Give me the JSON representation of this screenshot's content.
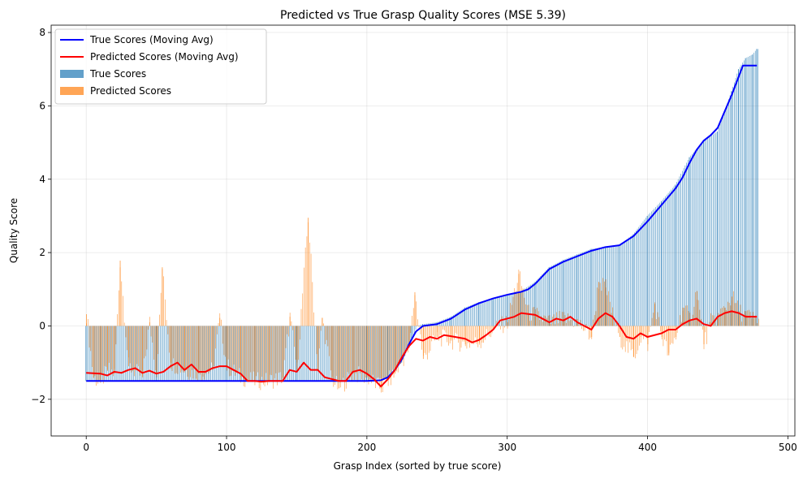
{
  "chart_data": {
    "type": "bar",
    "title": "Predicted vs True Grasp Quality Scores (MSE 5.39)",
    "xlabel": "Grasp Index (sorted by true score)",
    "ylabel": "Quality Score",
    "xlim": [
      -25,
      505
    ],
    "ylim": [
      -3,
      8.2
    ],
    "x_ticks": [
      0,
      100,
      200,
      300,
      400,
      500
    ],
    "y_ticks": [
      -2,
      0,
      2,
      4,
      6,
      8
    ],
    "grid": true,
    "legend_position": "top-left",
    "n_points": 480,
    "series": [
      {
        "name": "True Scores (Moving Avg)",
        "kind": "line",
        "color": "#0000ff",
        "points": [
          [
            0,
            -1.5
          ],
          [
            100,
            -1.5
          ],
          [
            200,
            -1.5
          ],
          [
            210,
            -1.48
          ],
          [
            215,
            -1.4
          ],
          [
            220,
            -1.2
          ],
          [
            225,
            -0.9
          ],
          [
            230,
            -0.5
          ],
          [
            235,
            -0.15
          ],
          [
            240,
            0.0
          ],
          [
            250,
            0.05
          ],
          [
            260,
            0.2
          ],
          [
            270,
            0.45
          ],
          [
            280,
            0.62
          ],
          [
            290,
            0.75
          ],
          [
            300,
            0.85
          ],
          [
            310,
            0.93
          ],
          [
            315,
            1.0
          ],
          [
            320,
            1.15
          ],
          [
            325,
            1.35
          ],
          [
            330,
            1.55
          ],
          [
            340,
            1.75
          ],
          [
            350,
            1.9
          ],
          [
            360,
            2.05
          ],
          [
            370,
            2.15
          ],
          [
            380,
            2.2
          ],
          [
            390,
            2.45
          ],
          [
            400,
            2.85
          ],
          [
            410,
            3.3
          ],
          [
            420,
            3.75
          ],
          [
            425,
            4.05
          ],
          [
            430,
            4.45
          ],
          [
            435,
            4.8
          ],
          [
            440,
            5.05
          ],
          [
            445,
            5.2
          ],
          [
            450,
            5.4
          ],
          [
            455,
            5.85
          ],
          [
            460,
            6.3
          ],
          [
            465,
            6.8
          ],
          [
            468,
            7.1
          ],
          [
            478,
            7.1
          ]
        ]
      },
      {
        "name": "Predicted Scores (Moving Avg)",
        "kind": "line",
        "color": "#ff0000",
        "points": [
          [
            0,
            -1.28
          ],
          [
            10,
            -1.3
          ],
          [
            15,
            -1.35
          ],
          [
            20,
            -1.25
          ],
          [
            25,
            -1.28
          ],
          [
            30,
            -1.2
          ],
          [
            35,
            -1.15
          ],
          [
            40,
            -1.28
          ],
          [
            45,
            -1.22
          ],
          [
            50,
            -1.3
          ],
          [
            55,
            -1.25
          ],
          [
            60,
            -1.1
          ],
          [
            65,
            -1.0
          ],
          [
            70,
            -1.2
          ],
          [
            75,
            -1.05
          ],
          [
            80,
            -1.25
          ],
          [
            85,
            -1.25
          ],
          [
            90,
            -1.15
          ],
          [
            95,
            -1.1
          ],
          [
            100,
            -1.1
          ],
          [
            105,
            -1.2
          ],
          [
            110,
            -1.3
          ],
          [
            115,
            -1.5
          ],
          [
            120,
            -1.5
          ],
          [
            125,
            -1.52
          ],
          [
            130,
            -1.5
          ],
          [
            140,
            -1.5
          ],
          [
            145,
            -1.2
          ],
          [
            150,
            -1.25
          ],
          [
            155,
            -1.0
          ],
          [
            160,
            -1.2
          ],
          [
            165,
            -1.2
          ],
          [
            170,
            -1.4
          ],
          [
            175,
            -1.45
          ],
          [
            180,
            -1.5
          ],
          [
            185,
            -1.5
          ],
          [
            190,
            -1.25
          ],
          [
            195,
            -1.2
          ],
          [
            200,
            -1.3
          ],
          [
            205,
            -1.45
          ],
          [
            210,
            -1.65
          ],
          [
            215,
            -1.45
          ],
          [
            220,
            -1.2
          ],
          [
            225,
            -0.85
          ],
          [
            230,
            -0.55
          ],
          [
            235,
            -0.35
          ],
          [
            240,
            -0.4
          ],
          [
            245,
            -0.3
          ],
          [
            250,
            -0.35
          ],
          [
            255,
            -0.25
          ],
          [
            260,
            -0.28
          ],
          [
            270,
            -0.35
          ],
          [
            275,
            -0.45
          ],
          [
            280,
            -0.38
          ],
          [
            285,
            -0.25
          ],
          [
            290,
            -0.1
          ],
          [
            295,
            0.15
          ],
          [
            300,
            0.2
          ],
          [
            305,
            0.25
          ],
          [
            310,
            0.35
          ],
          [
            320,
            0.3
          ],
          [
            325,
            0.2
          ],
          [
            330,
            0.1
          ],
          [
            335,
            0.2
          ],
          [
            340,
            0.15
          ],
          [
            345,
            0.25
          ],
          [
            350,
            0.1
          ],
          [
            355,
            0.0
          ],
          [
            360,
            -0.1
          ],
          [
            365,
            0.2
          ],
          [
            370,
            0.35
          ],
          [
            375,
            0.25
          ],
          [
            380,
            0.0
          ],
          [
            385,
            -0.3
          ],
          [
            390,
            -0.35
          ],
          [
            395,
            -0.2
          ],
          [
            400,
            -0.3
          ],
          [
            410,
            -0.2
          ],
          [
            415,
            -0.1
          ],
          [
            420,
            -0.1
          ],
          [
            425,
            0.05
          ],
          [
            430,
            0.15
          ],
          [
            435,
            0.2
          ],
          [
            440,
            0.05
          ],
          [
            445,
            0.0
          ],
          [
            450,
            0.25
          ],
          [
            455,
            0.35
          ],
          [
            460,
            0.4
          ],
          [
            465,
            0.35
          ],
          [
            470,
            0.25
          ],
          [
            478,
            0.25
          ]
        ]
      },
      {
        "name": "True Scores",
        "kind": "bar",
        "color": "#1f77b4",
        "points": [
          [
            0,
            -1.5
          ],
          [
            50,
            -1.5
          ],
          [
            100,
            -1.5
          ],
          [
            150,
            -1.5
          ],
          [
            200,
            -1.5
          ],
          [
            215,
            -1.4
          ],
          [
            225,
            -1.0
          ],
          [
            232,
            -0.4
          ],
          [
            236,
            0.0
          ],
          [
            240,
            0.05
          ],
          [
            250,
            0.1
          ],
          [
            260,
            0.25
          ],
          [
            270,
            0.5
          ],
          [
            280,
            0.65
          ],
          [
            290,
            0.75
          ],
          [
            300,
            0.85
          ],
          [
            310,
            0.95
          ],
          [
            320,
            1.2
          ],
          [
            330,
            1.6
          ],
          [
            340,
            1.8
          ],
          [
            350,
            1.95
          ],
          [
            360,
            2.1
          ],
          [
            370,
            2.15
          ],
          [
            380,
            2.2
          ],
          [
            390,
            2.5
          ],
          [
            400,
            3.0
          ],
          [
            410,
            3.4
          ],
          [
            420,
            3.85
          ],
          [
            430,
            4.6
          ],
          [
            440,
            5.05
          ],
          [
            450,
            5.3
          ],
          [
            460,
            6.4
          ],
          [
            465,
            7.0
          ],
          [
            470,
            7.3
          ],
          [
            475,
            7.4
          ],
          [
            478,
            7.55
          ]
        ]
      },
      {
        "name": "Predicted Scores",
        "kind": "bar",
        "color": "#ff7f0e",
        "points": [
          [
            0,
            0.32
          ],
          [
            5,
            -1.4
          ],
          [
            10,
            -1.55
          ],
          [
            15,
            -1.2
          ],
          [
            20,
            -1.3
          ],
          [
            24,
            1.78
          ],
          [
            30,
            -1.1
          ],
          [
            40,
            -1.4
          ],
          [
            45,
            0.1
          ],
          [
            50,
            -1.3
          ],
          [
            54,
            1.6
          ],
          [
            60,
            -1.0
          ],
          [
            70,
            -1.2
          ],
          [
            80,
            -1.3
          ],
          [
            90,
            -1.2
          ],
          [
            95,
            0.22
          ],
          [
            100,
            -1.1
          ],
          [
            110,
            -1.4
          ],
          [
            120,
            -1.5
          ],
          [
            130,
            -1.5
          ],
          [
            140,
            -1.4
          ],
          [
            145,
            0.25
          ],
          [
            150,
            -1.2
          ],
          [
            158,
            2.95
          ],
          [
            165,
            -1.2
          ],
          [
            168,
            0.22
          ],
          [
            175,
            -1.45
          ],
          [
            180,
            -1.7
          ],
          [
            190,
            -1.3
          ],
          [
            200,
            -1.4
          ],
          [
            210,
            -1.7
          ],
          [
            220,
            -1.3
          ],
          [
            230,
            -0.6
          ],
          [
            234,
            0.92
          ],
          [
            240,
            -0.9
          ],
          [
            250,
            -0.3
          ],
          [
            260,
            -0.4
          ],
          [
            270,
            -0.5
          ],
          [
            280,
            -0.45
          ],
          [
            290,
            -0.1
          ],
          [
            300,
            0.1
          ],
          [
            308,
            1.42
          ],
          [
            315,
            0.35
          ],
          [
            320,
            0.3
          ],
          [
            330,
            0.1
          ],
          [
            340,
            0.2
          ],
          [
            350,
            0.1
          ],
          [
            360,
            -0.3
          ],
          [
            365,
            1.2
          ],
          [
            370,
            1.05
          ],
          [
            375,
            0.3
          ],
          [
            380,
            -0.3
          ],
          [
            390,
            -0.85
          ],
          [
            395,
            -0.3
          ],
          [
            400,
            -0.5
          ],
          [
            405,
            0.6
          ],
          [
            410,
            -0.3
          ],
          [
            415,
            -0.8
          ],
          [
            420,
            -0.3
          ],
          [
            425,
            0.5
          ],
          [
            430,
            0.2
          ],
          [
            435,
            0.95
          ],
          [
            440,
            -0.5
          ],
          [
            445,
            0.1
          ],
          [
            450,
            0.25
          ],
          [
            455,
            0.5
          ],
          [
            460,
            0.8
          ],
          [
            465,
            0.4
          ],
          [
            470,
            0.3
          ],
          [
            475,
            0.2
          ]
        ]
      }
    ]
  }
}
